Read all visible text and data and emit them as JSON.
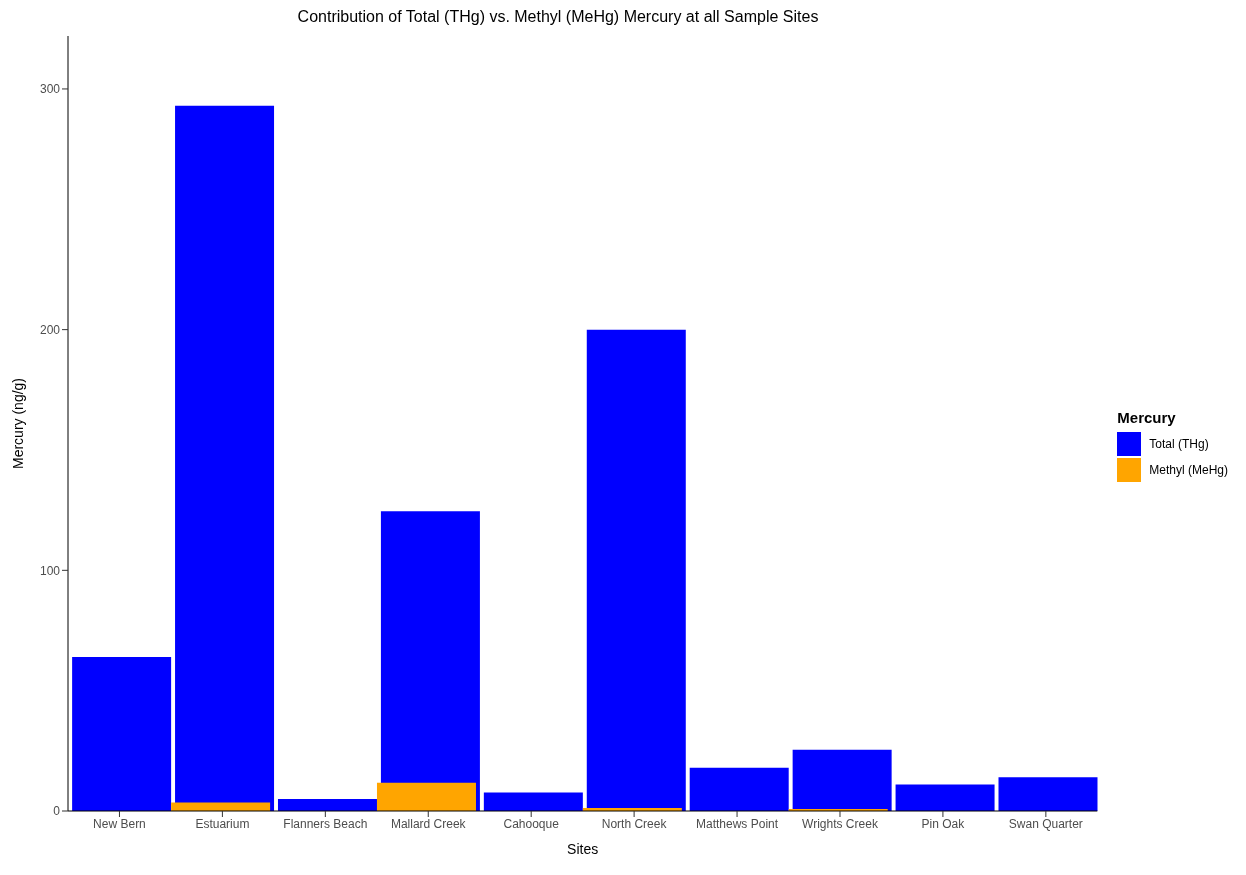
{
  "chart_data": {
    "type": "bar",
    "title": "Contribution of Total (THg) vs. Methyl (MeHg) Mercury at all Sample Sites",
    "xlabel": "Sites",
    "ylabel": "Mercury (ng/g)",
    "legend_title": "Mercury",
    "legend": "right",
    "categories": [
      "New Bern",
      "Estuarium",
      "Flanners Beach",
      "Mallard Creek",
      "Cahooque",
      "North Creek",
      "Matthews Point",
      "Wrights Creek",
      "Pin Oak",
      "Swan Quarter"
    ],
    "series": [
      {
        "name": "Total (THg)",
        "color": "#0000ff",
        "values": [
          64,
          293,
          5,
          124.5,
          7.7,
          200,
          18,
          25.5,
          11,
          14
        ]
      },
      {
        "name": "Methyl (MeHg)",
        "color": "#ffa500",
        "values": [
          null,
          3.5,
          null,
          11.7,
          null,
          1.2,
          null,
          0.8,
          null,
          null
        ]
      }
    ],
    "ylim": [
      0,
      322
    ],
    "yticks": [
      0,
      100,
      200,
      300
    ]
  }
}
